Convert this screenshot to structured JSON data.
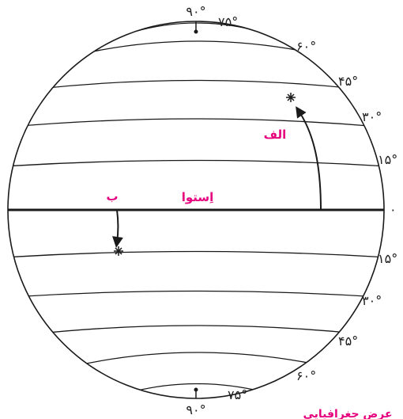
{
  "labels": {
    "equator": "اِستوا",
    "point_a": "الف",
    "point_b": "ب",
    "caption": "عرض جغرافیایی"
  },
  "latitudes_north": [
    {
      "id": "n0",
      "text": "۰"
    },
    {
      "id": "n15",
      "text": "۱۵°"
    },
    {
      "id": "n30",
      "text": "۳۰°"
    },
    {
      "id": "n45",
      "text": "۴۵°"
    },
    {
      "id": "n60",
      "text": "۶۰°"
    },
    {
      "id": "n75",
      "text": "۷۵°"
    },
    {
      "id": "n90",
      "text": "۹۰°"
    }
  ],
  "latitudes_south": [
    {
      "id": "s15",
      "text": "۱۵°"
    },
    {
      "id": "s30",
      "text": "۳۰°"
    },
    {
      "id": "s45",
      "text": "۴۵°"
    },
    {
      "id": "s60",
      "text": "۶۰°"
    },
    {
      "id": "s75",
      "text": "۷۵°"
    },
    {
      "id": "s90",
      "text": "۹۰°"
    }
  ],
  "colors": {
    "accent": "#e6007e",
    "line": "#1a1a1a"
  }
}
